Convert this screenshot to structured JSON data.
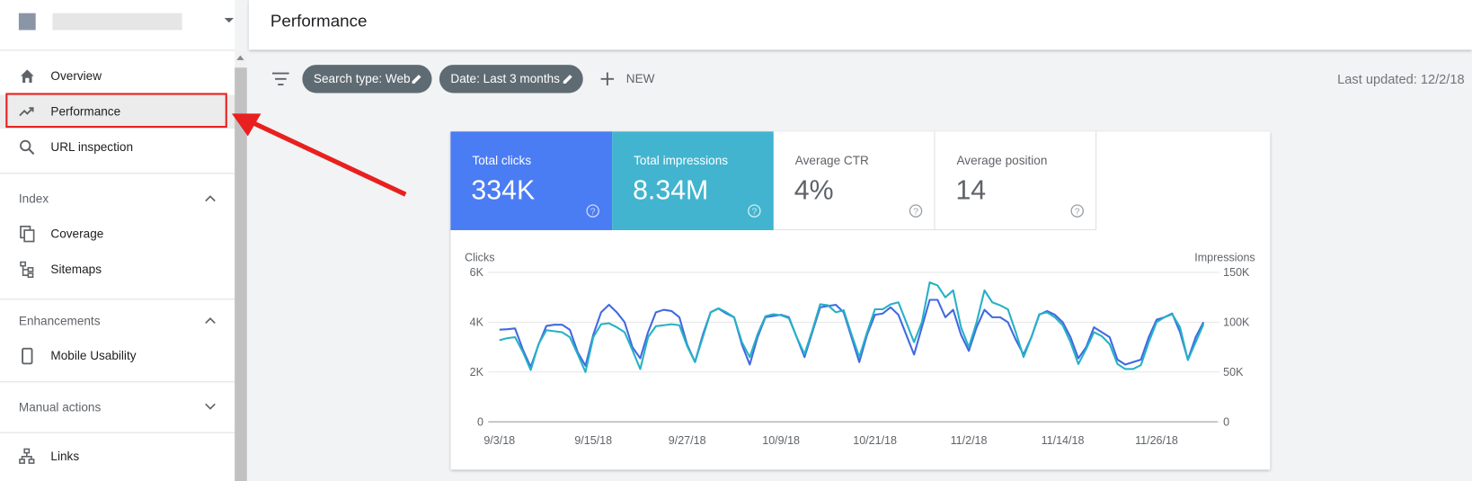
{
  "sidebar": {
    "nav": [
      "Overview",
      "Performance",
      "URL inspection"
    ],
    "sections": [
      {
        "title": "Index",
        "items": [
          "Coverage",
          "Sitemaps"
        ]
      },
      {
        "title": "Enhancements",
        "items": [
          "Mobile Usability"
        ]
      },
      {
        "title": "Manual actions"
      }
    ],
    "links": "Links"
  },
  "header": {
    "title": "Performance"
  },
  "filters": {
    "chips": [
      "Search type: Web",
      "Date: Last 3 months"
    ],
    "new": "NEW",
    "last_updated": "Last updated: 12/2/18"
  },
  "metrics": [
    {
      "label": "Total clicks",
      "value": "334K"
    },
    {
      "label": "Total impressions",
      "value": "8.34M"
    },
    {
      "label": "Average CTR",
      "value": "4%"
    },
    {
      "label": "Average position",
      "value": "14"
    }
  ],
  "chart_data": {
    "type": "line",
    "ylabel": "Clicks",
    "y2label": "Impressions",
    "categories": [
      "9/3/18",
      null,
      null,
      null,
      null,
      null,
      null,
      null,
      null,
      null,
      null,
      null,
      "9/15/18",
      null,
      null,
      null,
      null,
      null,
      null,
      null,
      null,
      null,
      null,
      null,
      "9/27/18",
      null,
      null,
      null,
      null,
      null,
      null,
      null,
      null,
      null,
      null,
      null,
      "10/9/18",
      null,
      null,
      null,
      null,
      null,
      null,
      null,
      null,
      null,
      null,
      null,
      "10/21/18",
      null,
      null,
      null,
      null,
      null,
      null,
      null,
      null,
      null,
      null,
      null,
      "11/2/18",
      null,
      null,
      null,
      null,
      null,
      null,
      null,
      null,
      null,
      null,
      null,
      "11/14/18",
      null,
      null,
      null,
      null,
      null,
      null,
      null,
      null,
      null,
      null,
      null,
      "11/26/18",
      null,
      null,
      null,
      null,
      null,
      null
    ],
    "ylim": [
      0,
      6000
    ],
    "yticks": [
      0,
      {
        "value": 2000,
        "label": "2K"
      },
      {
        "value": 4000,
        "label": "4K"
      },
      {
        "value": 6000,
        "label": "6K"
      }
    ],
    "y2lim": [
      0,
      150000
    ],
    "y2ticks": [
      0,
      {
        "value": 50000,
        "label": "50K"
      },
      {
        "value": 100000,
        "label": "100K"
      },
      {
        "value": 150000,
        "label": "150K"
      }
    ],
    "grid": true,
    "series": [
      {
        "color": "#4169e1",
        "values": [
          3700,
          3720,
          3750,
          2900,
          2200,
          3100,
          3850,
          3900,
          3900,
          3700,
          2800,
          2250,
          3500,
          4400,
          4700,
          4400,
          4000,
          3000,
          2550,
          3600,
          4400,
          4500,
          4450,
          4200,
          3100,
          2400,
          3500,
          4400,
          4550,
          4350,
          4200,
          3100,
          2300,
          3400,
          4200,
          4250,
          4300,
          4200,
          3400,
          2600,
          3600,
          4600,
          4650,
          4700,
          4400,
          3400,
          2400,
          3500,
          4300,
          4350,
          4600,
          4300,
          3500,
          2700,
          3800,
          4900,
          4900,
          4200,
          4500,
          3500,
          2850,
          3800,
          4500,
          4200,
          4200,
          4000,
          3300,
          2700,
          3400,
          4300,
          4450,
          4300,
          4000,
          3400,
          2550,
          3000,
          3800,
          3600,
          3400,
          2500,
          2300,
          2400,
          2500,
          3400,
          4100,
          4200,
          4350,
          3600,
          2500,
          3400,
          4000
        ]
      },
      {
        "color": "#26b1c6",
        "axis": "y2",
        "values": [
          82000,
          84000,
          85000,
          70000,
          52000,
          78000,
          92000,
          91000,
          90000,
          85000,
          68000,
          50000,
          85000,
          98000,
          99000,
          95000,
          90000,
          72000,
          53000,
          85000,
          96000,
          97000,
          98000,
          97000,
          76000,
          60000,
          85000,
          110000,
          114000,
          110000,
          105000,
          80000,
          65000,
          88000,
          106000,
          108000,
          107000,
          104000,
          85000,
          68000,
          92000,
          118000,
          117000,
          110000,
          112000,
          88000,
          65000,
          90000,
          113000,
          113000,
          118000,
          120000,
          100000,
          80000,
          100000,
          140000,
          137000,
          125000,
          132000,
          95000,
          75000,
          100000,
          132000,
          120000,
          117000,
          113000,
          90000,
          65000,
          85000,
          108000,
          110000,
          105000,
          97000,
          80000,
          58000,
          73000,
          90000,
          86000,
          78000,
          58000,
          53000,
          53000,
          57000,
          80000,
          100000,
          105000,
          108000,
          95000,
          62000,
          80000,
          98000
        ]
      }
    ]
  }
}
